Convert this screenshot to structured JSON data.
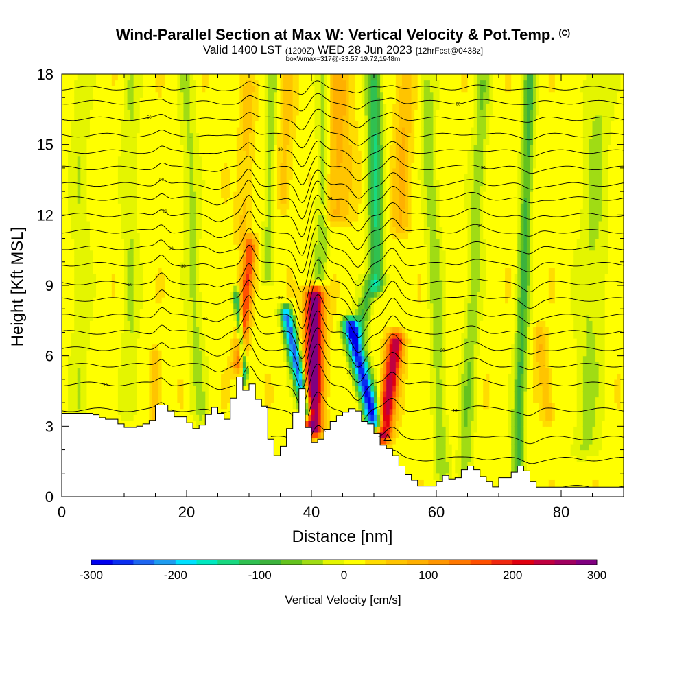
{
  "header": {
    "title": "Wind-Parallel Section at Max W: Vertical Velocity & Pot.Temp.",
    "copyright": "(C)",
    "valid_prefix": "Valid 1400 LST",
    "valid_z": "(1200Z)",
    "valid_date": "WED 28 Jun 2023",
    "fcst": "[12hrFcst@0438z]",
    "box_info": "boxWmax=317@-33.57,19.72,1948m"
  },
  "chart_data": {
    "type": "heatmap",
    "xlabel": "Distance [nm]",
    "ylabel": "Height [Kft MSL]",
    "xlim": [
      0,
      90
    ],
    "ylim": [
      0,
      18
    ],
    "xticks": [
      0,
      20,
      40,
      60,
      80
    ],
    "yticks": [
      0,
      3,
      6,
      9,
      12,
      15,
      18
    ],
    "colorbar": {
      "label": "Vertical Velocity [cm/s]",
      "ticks": [
        -300,
        -200,
        -100,
        0,
        100,
        200,
        300
      ],
      "colors": [
        "#0000ee",
        "#0a2ef0",
        "#1e66f0",
        "#1e9cf0",
        "#00e0ff",
        "#00e8c0",
        "#18d880",
        "#30c050",
        "#3cb23c",
        "#64c21e",
        "#a0dc14",
        "#e4f500",
        "#ffff00",
        "#ffdc00",
        "#ffc400",
        "#ffb000",
        "#ff9600",
        "#ff7800",
        "#ff5000",
        "#f02810",
        "#e00010",
        "#c00040",
        "#a00060",
        "#800080"
      ]
    },
    "terrain_kft": [
      [
        0,
        3.55
      ],
      [
        5,
        3.55
      ],
      [
        7,
        3.3
      ],
      [
        9,
        3.3
      ],
      [
        10,
        2.9
      ],
      [
        11,
        3.0
      ],
      [
        12,
        2.9
      ],
      [
        13,
        3.1
      ],
      [
        14,
        3.1
      ],
      [
        15,
        3.4
      ],
      [
        15.5,
        3.9
      ],
      [
        17,
        3.9
      ],
      [
        18,
        3.4
      ],
      [
        20,
        3.4
      ],
      [
        21,
        2.9
      ],
      [
        22,
        2.9
      ],
      [
        23,
        3.2
      ],
      [
        24,
        3.8
      ],
      [
        25,
        3.8
      ],
      [
        26,
        3.3
      ],
      [
        27,
        3.3
      ],
      [
        28,
        5.1
      ],
      [
        29,
        5.1
      ],
      [
        29.7,
        4.3
      ],
      [
        30.5,
        4.8
      ],
      [
        31,
        3.9
      ],
      [
        32,
        4.4
      ],
      [
        33,
        3.3
      ],
      [
        34,
        1.6
      ],
      [
        35,
        1.9
      ],
      [
        36,
        2.4
      ],
      [
        37,
        3.4
      ],
      [
        37.8,
        3.7
      ],
      [
        38.5,
        4.6
      ],
      [
        39.3,
        3.2
      ],
      [
        40,
        2.3
      ],
      [
        41,
        2.3
      ],
      [
        42,
        2.6
      ],
      [
        43,
        3.1
      ],
      [
        44,
        3.3
      ],
      [
        45,
        3.6
      ],
      [
        46,
        3.6
      ],
      [
        47,
        3.9
      ],
      [
        48,
        3.4
      ],
      [
        49,
        3.0
      ],
      [
        50,
        3.2
      ],
      [
        51,
        2.2
      ],
      [
        52,
        2.2
      ],
      [
        53,
        1.9
      ],
      [
        54,
        1.6
      ],
      [
        55,
        1.0
      ],
      [
        56,
        0.9
      ],
      [
        57,
        0.5
      ],
      [
        58,
        0.4
      ],
      [
        59,
        0.5
      ],
      [
        60,
        0.4
      ],
      [
        61,
        0.9
      ],
      [
        62,
        0.9
      ],
      [
        63,
        0.6
      ],
      [
        64,
        1.0
      ],
      [
        65,
        1.3
      ],
      [
        66,
        1.3
      ],
      [
        67,
        1.0
      ],
      [
        68,
        0.7
      ],
      [
        69,
        0.6
      ],
      [
        69.8,
        0.3
      ],
      [
        70.5,
        0.8
      ],
      [
        72,
        0.8
      ],
      [
        73,
        1.3
      ],
      [
        74,
        1.3
      ],
      [
        75,
        0.9
      ],
      [
        76,
        0.4
      ],
      [
        90,
        0.4
      ]
    ],
    "updraft_lanes": [
      {
        "x0": 30.2,
        "x1": 28.5,
        "ytop": 10.7,
        "ybot": 5.6,
        "w": 150,
        "hw": 1.0
      },
      {
        "x0": 40.5,
        "x1": 40.2,
        "ytop": 8.6,
        "ybot": 2.9,
        "w": 280,
        "hw": 1.5
      },
      {
        "x0": 53.5,
        "x1": 51.5,
        "ytop": 6.7,
        "ybot": 2.6,
        "w": 230,
        "hw": 1.3
      },
      {
        "x0": 44.5,
        "x1": 44.0,
        "ytop": 17.8,
        "ybot": 12.0,
        "w": 70,
        "hw": 2.2
      },
      {
        "x0": 55.0,
        "x1": 54.2,
        "ytop": 17.8,
        "ybot": 11.5,
        "w": 60,
        "hw": 1.4
      },
      {
        "x0": 36.2,
        "x1": 35.5,
        "ytop": 17.8,
        "ybot": 12.5,
        "w": 45,
        "hw": 1.3
      },
      {
        "x0": 30.0,
        "x1": 29.0,
        "ytop": 17.5,
        "ybot": 11.0,
        "w": 45,
        "hw": 1.2
      },
      {
        "x0": 15.0,
        "x1": 15.0,
        "ytop": 6.0,
        "ybot": 3.5,
        "w": 70,
        "hw": 0.7
      },
      {
        "x0": 76.5,
        "x1": 78.0,
        "ytop": 7.0,
        "ybot": 3.5,
        "w": 60,
        "hw": 1.0
      }
    ],
    "downdraft_lanes": [
      {
        "x0": 36.0,
        "x1": 39.2,
        "ytop": 7.8,
        "ybot": 3.6,
        "w": -260,
        "hw": 1.0
      },
      {
        "x0": 46.2,
        "x1": 50.0,
        "ytop": 7.3,
        "ybot": 3.2,
        "w": -300,
        "hw": 1.3
      },
      {
        "x0": 28.0,
        "x1": 29.3,
        "ytop": 8.5,
        "ybot": 5.3,
        "w": -190,
        "hw": 0.5
      },
      {
        "x0": 50.0,
        "x1": 50.5,
        "ytop": 17.8,
        "ybot": 9.0,
        "w": -140,
        "hw": 1.2
      },
      {
        "x0": 49.5,
        "x1": 47.5,
        "ytop": 9.0,
        "ybot": 7.0,
        "w": -90,
        "hw": 1.3
      },
      {
        "x0": 42.0,
        "x1": 41.5,
        "ytop": 17.8,
        "ybot": 9.5,
        "w": -65,
        "hw": 1.1
      },
      {
        "x0": 33.8,
        "x1": 33.0,
        "ytop": 17.8,
        "ybot": 9.5,
        "w": -55,
        "hw": 0.9
      },
      {
        "x0": 58.5,
        "x1": 61.0,
        "ytop": 17.8,
        "ybot": 1.0,
        "w": -55,
        "hw": 1.2
      },
      {
        "x0": 67.5,
        "x1": 64.5,
        "ytop": 17.8,
        "ybot": 1.0,
        "w": -60,
        "hw": 1.2
      },
      {
        "x0": 75.0,
        "x1": 73.0,
        "ytop": 17.8,
        "ybot": 1.0,
        "w": -100,
        "hw": 1.0
      },
      {
        "x0": 86.0,
        "x1": 84.0,
        "ytop": 17.8,
        "ybot": 2.0,
        "w": -45,
        "hw": 2.2
      },
      {
        "x0": 11.0,
        "x1": 11.0,
        "ytop": 17.8,
        "ybot": 3.5,
        "w": -40,
        "hw": 1.3
      },
      {
        "x0": 20.0,
        "x1": 22.0,
        "ytop": 17.8,
        "ybot": 3.5,
        "w": -45,
        "hw": 1.3
      },
      {
        "x0": 3.0,
        "x1": 3.0,
        "ytop": 17.8,
        "ybot": 3.8,
        "w": -35,
        "hw": 1.5
      }
    ],
    "isentropes": [
      {
        "base": 0.4,
        "amp": 0.0,
        "label": "",
        "lx": 0
      },
      {
        "base": 1.6,
        "amp": 0.45,
        "label": "",
        "lx": 0
      },
      {
        "base": 2.5,
        "amp": 0.55,
        "label": "",
        "lx": 0
      },
      {
        "base": 3.7,
        "amp": 0.7,
        "label": "10",
        "lx": 63
      },
      {
        "base": 4.8,
        "amp": 0.8,
        "label": "16",
        "lx": 7
      },
      {
        "base": 5.6,
        "amp": 0.9,
        "label": "19",
        "lx": 46
      },
      {
        "base": 6.3,
        "amp": 0.95,
        "label": "20",
        "lx": 61
      },
      {
        "base": 7.0,
        "amp": 1.0,
        "label": "20",
        "lx": 35.5
      },
      {
        "base": 7.7,
        "amp": 1.0,
        "label": "60",
        "lx": 23
      },
      {
        "base": 8.4,
        "amp": 1.0,
        "label": "20",
        "lx": 35
      },
      {
        "base": 9.1,
        "amp": 1.0,
        "label": "30",
        "lx": 11
      },
      {
        "base": 9.9,
        "amp": 0.95,
        "label": "30",
        "lx": 19.5
      },
      {
        "base": 10.6,
        "amp": 0.9,
        "label": "30",
        "lx": 17.5
      },
      {
        "base": 11.3,
        "amp": 0.9,
        "label": "34",
        "lx": 67
      },
      {
        "base": 12.0,
        "amp": 0.85,
        "label": "26",
        "lx": 16.5
      },
      {
        "base": 12.7,
        "amp": 0.8,
        "label": "38",
        "lx": 43
      },
      {
        "base": 13.3,
        "amp": 0.7,
        "label": "90",
        "lx": 16
      },
      {
        "base": 14.0,
        "amp": 0.6,
        "label": "30",
        "lx": 67.5
      },
      {
        "base": 14.7,
        "amp": 0.5,
        "label": "30",
        "lx": 35
      },
      {
        "base": 15.4,
        "amp": 0.4,
        "label": "",
        "lx": 0
      },
      {
        "base": 16.1,
        "amp": 0.35,
        "label": "50",
        "lx": 14
      },
      {
        "base": 16.8,
        "amp": 0.3,
        "label": "60",
        "lx": 63.5
      },
      {
        "base": 17.4,
        "amp": 0.25,
        "label": "",
        "lx": 0
      }
    ]
  }
}
